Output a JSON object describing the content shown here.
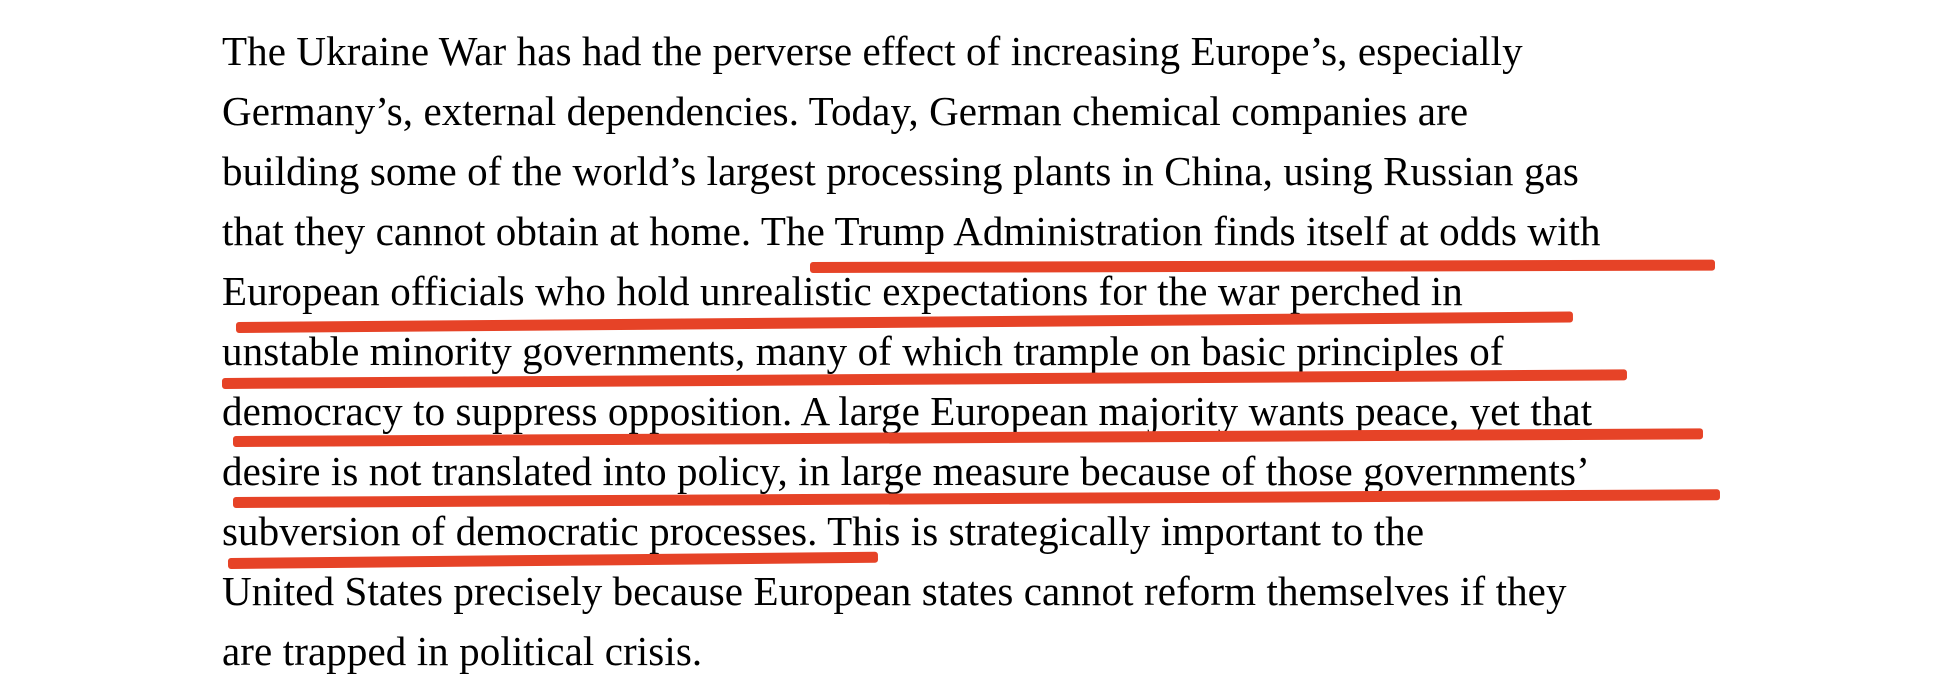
{
  "page": {
    "background_color": "#ffffff",
    "text_color": "#000000"
  },
  "document": {
    "paragraph_lines": [
      {
        "text": "The Ukraine War has had the perverse effect of increasing Europe’s, especially",
        "underlined": false
      },
      {
        "text": "Germany’s, external dependencies. Today, German chemical companies are",
        "underlined": false
      },
      {
        "text": "building some of the world’s largest processing plants in China, using Russian gas",
        "underlined": false
      },
      {
        "text": "that they cannot obtain at home. The Trump Administration finds itself at odds with",
        "underlined": "partial-from-The-Trump"
      },
      {
        "text": "European officials who hold unrealistic expectations for the war perched in",
        "underlined": true
      },
      {
        "text": "unstable minority governments, many of which trample on basic principles of",
        "underlined": true
      },
      {
        "text": "democracy to suppress opposition. A large European majority wants peace, yet that",
        "underlined": true
      },
      {
        "text": "desire is not translated into policy, in large measure because of those governments’",
        "underlined": true
      },
      {
        "text": "subversion of democratic processes. This is strategically important to the",
        "underlined": "partial-through-processes"
      },
      {
        "text": "United States precisely because European states cannot reform themselves if they",
        "underlined": false
      },
      {
        "text": "are trapped in political crisis.",
        "underlined": false
      }
    ],
    "annotation": {
      "type": "red-marker-underline",
      "color": "#e64327",
      "underlined_passage": "The Trump Administration finds itself at odds with European officials who hold unrealistic expectations for the war perched in unstable minority governments, many of which trample on basic principles of democracy to suppress opposition. A large European majority wants peace, yet that desire is not translated into policy, in large measure because of those governments’ subversion of democratic processes."
    }
  }
}
